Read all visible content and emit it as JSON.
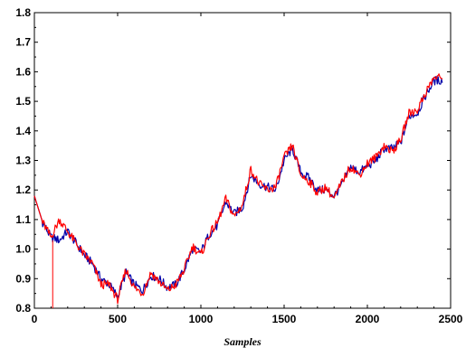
{
  "chart_data": {
    "type": "line",
    "title": "",
    "xlabel": "Samples",
    "ylabel": "",
    "xlim": [
      0,
      2500
    ],
    "ylim": [
      0.8,
      1.8
    ],
    "x_ticks": [
      0,
      500,
      1000,
      1500,
      2000,
      2500
    ],
    "x_tick_labels": [
      "0",
      "500",
      "1000",
      "1500",
      "2000",
      "2500"
    ],
    "y_ticks": [
      0.8,
      0.9,
      1.0,
      1.1,
      1.2,
      1.3,
      1.4,
      1.5,
      1.6,
      1.7,
      1.8
    ],
    "y_tick_labels": [
      "0.8",
      "0.9",
      "1.0",
      "1.1",
      "1.2",
      "1.3",
      "1.4",
      "1.5",
      "1.6",
      "1.7",
      "1.8"
    ],
    "grid": false,
    "legend": "none",
    "x": [
      0,
      50,
      100,
      150,
      200,
      250,
      300,
      350,
      400,
      450,
      500,
      550,
      600,
      650,
      700,
      750,
      800,
      850,
      900,
      950,
      1000,
      1050,
      1100,
      1150,
      1200,
      1250,
      1300,
      1350,
      1400,
      1450,
      1500,
      1550,
      1600,
      1650,
      1700,
      1750,
      1800,
      1850,
      1900,
      1950,
      2000,
      2050,
      2100,
      2150,
      2200,
      2250,
      2300,
      2350,
      2400,
      2450
    ],
    "series": [
      {
        "color": "#0000aa",
        "values": [
          1.18,
          1.09,
          1.04,
          1.03,
          1.06,
          1.02,
          0.98,
          0.95,
          0.9,
          0.88,
          0.84,
          0.92,
          0.88,
          0.86,
          0.91,
          0.9,
          0.87,
          0.88,
          0.93,
          1.0,
          0.99,
          1.05,
          1.08,
          1.16,
          1.12,
          1.14,
          1.25,
          1.22,
          1.21,
          1.2,
          1.3,
          1.34,
          1.26,
          1.24,
          1.2,
          1.2,
          1.18,
          1.22,
          1.28,
          1.26,
          1.28,
          1.3,
          1.34,
          1.34,
          1.36,
          1.45,
          1.46,
          1.52,
          1.57,
          1.57
        ]
      },
      {
        "color": "#ff0000",
        "values": [
          1.18,
          1.09,
          1.04,
          1.1,
          1.06,
          1.02,
          0.98,
          0.95,
          0.88,
          0.88,
          0.83,
          0.93,
          0.87,
          0.85,
          0.92,
          0.89,
          0.86,
          0.88,
          0.93,
          1.01,
          0.98,
          1.05,
          1.09,
          1.17,
          1.11,
          1.15,
          1.27,
          1.22,
          1.2,
          1.21,
          1.31,
          1.35,
          1.25,
          1.23,
          1.19,
          1.21,
          1.17,
          1.23,
          1.28,
          1.25,
          1.29,
          1.31,
          1.35,
          1.33,
          1.37,
          1.46,
          1.47,
          1.53,
          1.58,
          1.58
        ]
      }
    ],
    "vertical_spike": {
      "x": 110,
      "y_from": 0.8,
      "y_to": 1.03,
      "color": "#ff0000"
    }
  }
}
